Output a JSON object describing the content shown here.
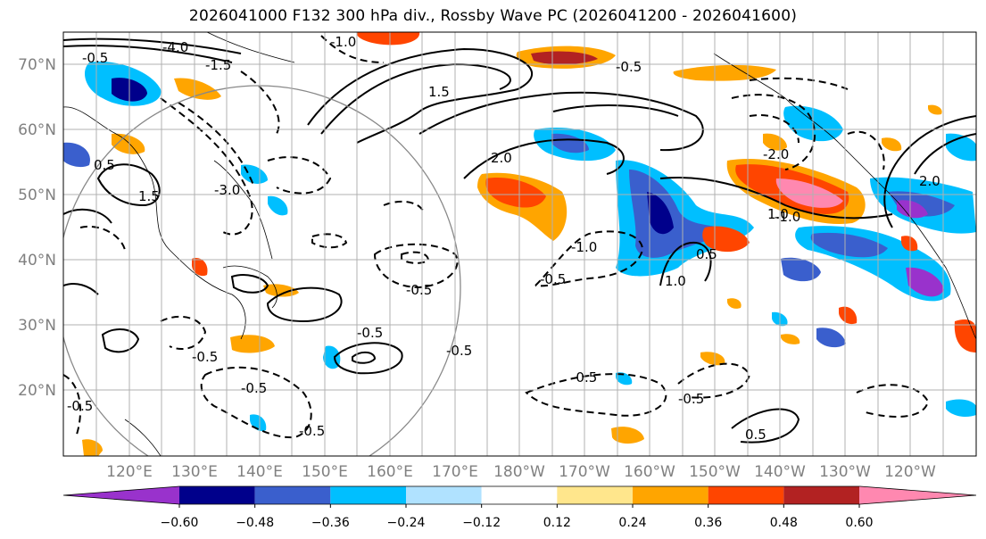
{
  "title": "2026041000 F132 300 hPa div., Rossby Wave PC (2026041200 - 2026041600)",
  "map": {
    "lat_labels": [
      "70°N",
      "60°N",
      "50°N",
      "40°N",
      "30°N",
      "20°N"
    ],
    "lon_labels": [
      "120°E",
      "130°E",
      "140°E",
      "150°E",
      "160°E",
      "170°E",
      "180°W",
      "170°W",
      "160°W",
      "150°W",
      "140°W",
      "130°W",
      "120°W"
    ],
    "contour_labels": [
      "-0.5",
      "-1.0",
      "-1.5",
      "-2.0",
      "-3.0",
      "-4.0",
      "0.5",
      "1.0",
      "1.5",
      "2.0",
      "-0.5",
      "0.5",
      "-0.5",
      "-0.5",
      "-0.5",
      "-0.5",
      "-1.0",
      "-0.5",
      "1.0",
      "-0.5",
      "2.0",
      "-0.5",
      "-1.0",
      "1.5",
      "-0.5",
      "-0.5",
      "0.5",
      "-0.5"
    ]
  },
  "colorbar": {
    "ticks": [
      "−0.60",
      "−0.48",
      "−0.36",
      "−0.24",
      "−0.12",
      "0.12",
      "0.24",
      "0.36",
      "0.48",
      "0.60"
    ],
    "colors": [
      "#9932cc",
      "#00008b",
      "#3a5fcd",
      "#00bfff",
      "#b0e2ff",
      "#ffffff",
      "#ffe68c",
      "#ffa500",
      "#ff4500",
      "#b22222",
      "#ff88b0"
    ]
  }
}
